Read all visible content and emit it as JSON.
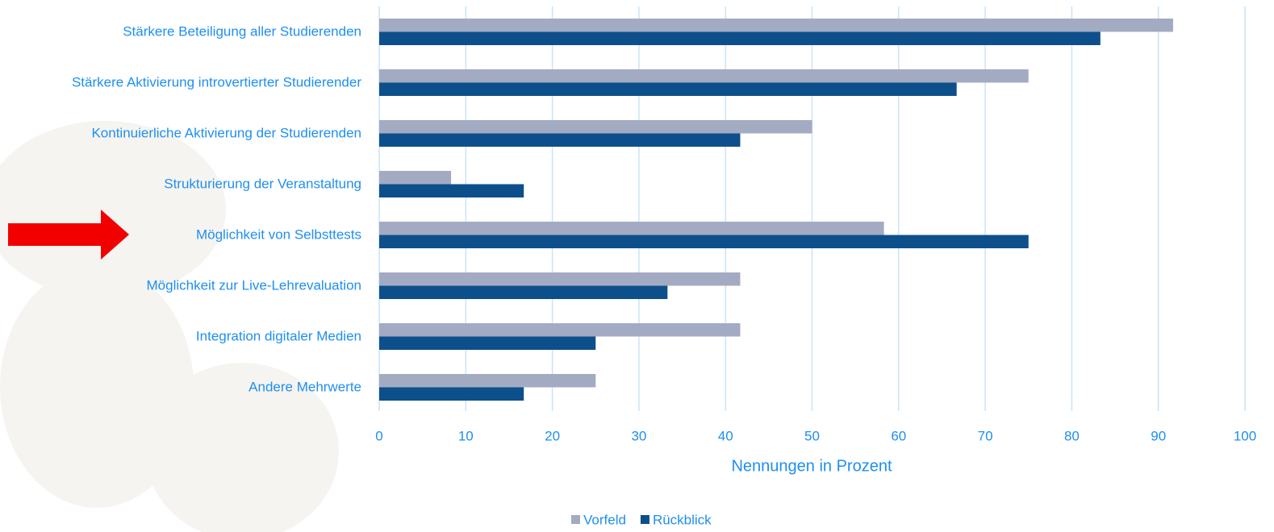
{
  "chart_data": {
    "type": "hbar",
    "categories": [
      "Stärkere Beteiligung aller Studierenden",
      "Stärkere Aktivierung introvertierter Studierender",
      "Kontinuierliche Aktivierung der Studierenden",
      "Strukturierung der Veranstaltung",
      "Möglichkeit von Selbsttests",
      "Möglichkeit zur Live-Lehrevaluation",
      "Integration digitaler Medien",
      "Andere Mehrwerte"
    ],
    "series": [
      {
        "name": "Vorfeld",
        "color": "#a3abc3",
        "values": [
          91.7,
          75,
          50,
          8.3,
          58.3,
          41.7,
          41.7,
          25
        ]
      },
      {
        "name": "Rückblick",
        "color": "#0d4f8b",
        "values": [
          83.3,
          66.7,
          41.7,
          16.7,
          75,
          33.3,
          25,
          16.7
        ]
      }
    ],
    "xlim": [
      0,
      100
    ],
    "xticks": [
      0,
      10,
      20,
      30,
      40,
      50,
      60,
      70,
      80,
      90,
      100
    ],
    "xlabel": "Nennungen in Prozent",
    "grid": true,
    "legend": "bottom"
  }
}
